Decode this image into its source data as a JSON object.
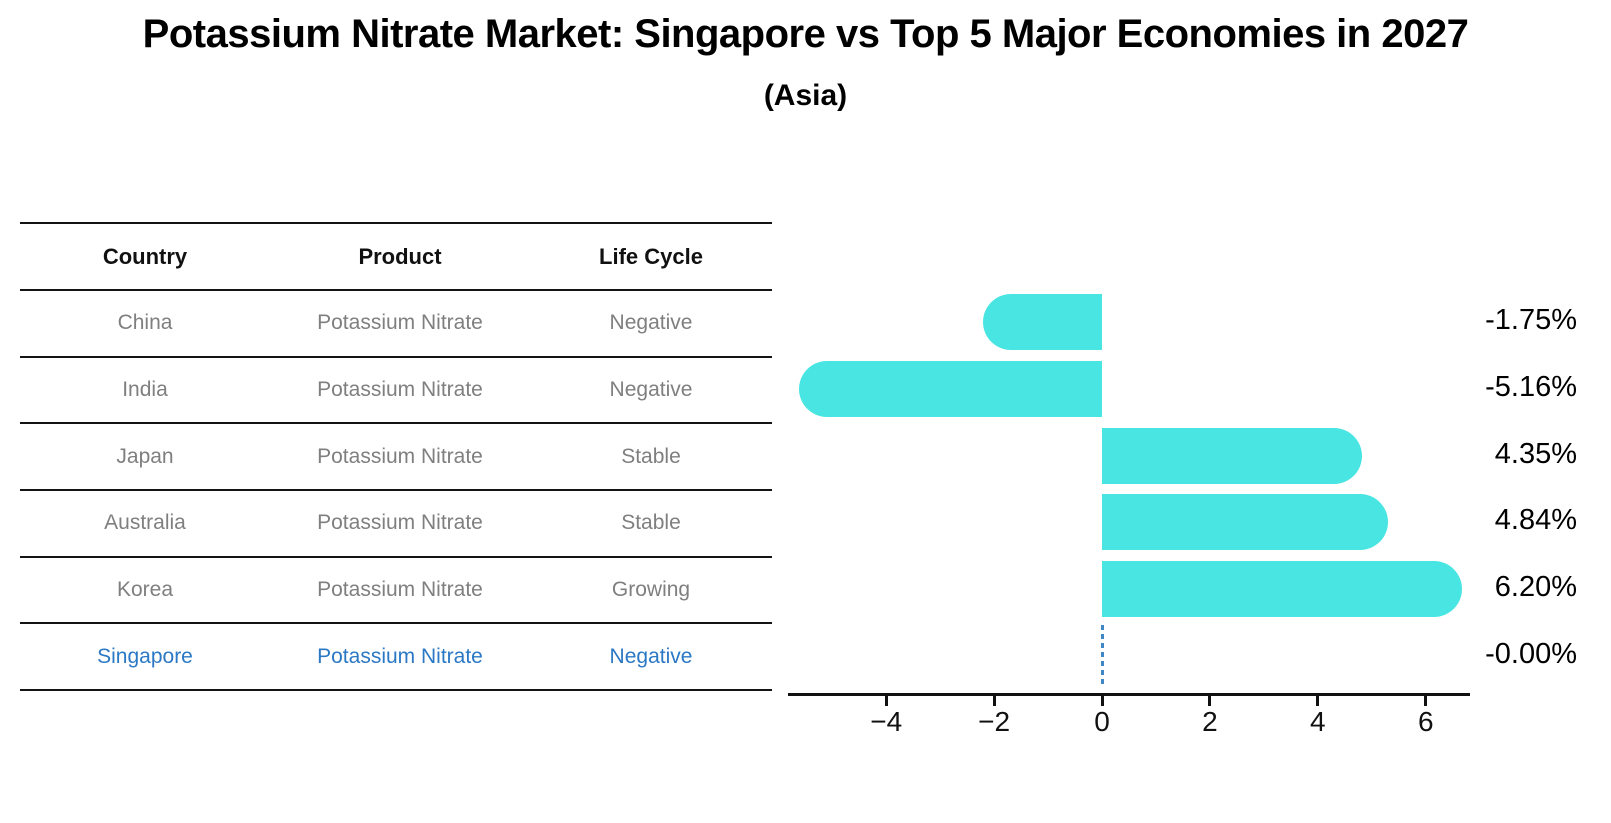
{
  "title": "Potassium Nitrate Market: Singapore vs Top 5 Major Economies in 2027",
  "subtitle": "(Asia)",
  "table": {
    "headers": [
      "Country",
      "Product",
      "Life Cycle"
    ],
    "rows": [
      {
        "country": "China",
        "product": "Potassium Nitrate",
        "life_cycle": "Negative",
        "highlight": false
      },
      {
        "country": "India",
        "product": "Potassium Nitrate",
        "life_cycle": "Negative",
        "highlight": false
      },
      {
        "country": "Japan",
        "product": "Potassium Nitrate",
        "life_cycle": "Stable",
        "highlight": false
      },
      {
        "country": "Australia",
        "product": "Potassium Nitrate",
        "life_cycle": "Stable",
        "highlight": false
      },
      {
        "country": "Korea",
        "product": "Potassium Nitrate",
        "life_cycle": "Growing",
        "highlight": false
      },
      {
        "country": "Singapore",
        "product": "Potassium Nitrate",
        "life_cycle": "Negative",
        "highlight": true
      }
    ],
    "text_color": "#7f7f7f",
    "highlight_color": "#2b78c5"
  },
  "chart_data": {
    "type": "bar",
    "orientation": "horizontal",
    "categories": [
      "China",
      "India",
      "Japan",
      "Australia",
      "Korea",
      "Singapore"
    ],
    "values": [
      -1.75,
      -5.16,
      4.35,
      4.84,
      6.2,
      -0.0
    ],
    "value_labels": [
      "-1.75%",
      "-5.16%",
      "4.35%",
      "4.84%",
      "6.20%",
      "-0.00%"
    ],
    "x_ticks": [
      -4,
      -2,
      0,
      2,
      4,
      6
    ],
    "x_tick_labels": [
      "−4",
      "−2",
      "0",
      "2",
      "4",
      "6"
    ],
    "xlim": [
      -5.82,
      6.82
    ],
    "grid": false,
    "legend": false,
    "bar_color": "#48e5e3",
    "axis_color": "#111111",
    "zero_marker_color": "#3f87c5"
  }
}
